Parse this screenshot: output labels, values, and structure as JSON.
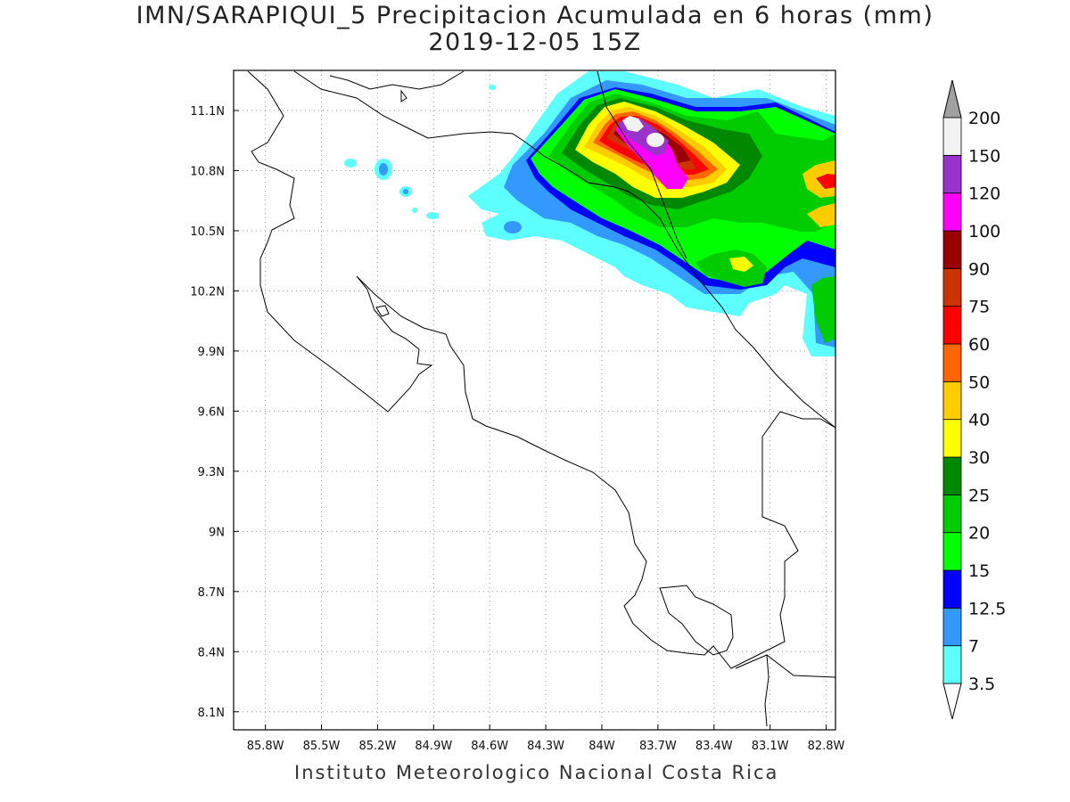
{
  "title": {
    "line1": "IMN/SARAPIQUI_5 Precipitacion Acumulada en 6 horas (mm)",
    "line2": "2019-12-05 15Z"
  },
  "footer": "Instituto Meteorologico Nacional Costa Rica",
  "map": {
    "x_ticks": [
      "85.8W",
      "85.5W",
      "85.2W",
      "84.9W",
      "84.6W",
      "84.3W",
      "84W",
      "83.7W",
      "83.4W",
      "83.1W",
      "82.8W"
    ],
    "y_ticks": [
      "11.1N",
      "10.8N",
      "10.5N",
      "10.2N",
      "9.9N",
      "9.6N",
      "9.3N",
      "9N",
      "8.7N",
      "8.4N",
      "8.1N"
    ],
    "lon_range": [
      85.97,
      82.75
    ],
    "lat_range": [
      8.01,
      11.3
    ],
    "grid": "dotted"
  },
  "colorbar": {
    "levels": [
      "3.5",
      "7",
      "12.5",
      "15",
      "20",
      "25",
      "30",
      "40",
      "50",
      "60",
      "75",
      "90",
      "100",
      "120",
      "150",
      "200"
    ],
    "colors": [
      "#ffffff",
      "#5effff",
      "#3399ff",
      "#0000ff",
      "#00ff00",
      "#00cc00",
      "#008800",
      "#ffff00",
      "#ffcc00",
      "#ff6600",
      "#ff0000",
      "#cc3300",
      "#990000",
      "#ff00ff",
      "#9933cc",
      "#f2f2f2",
      "#a0a0a0"
    ]
  }
}
